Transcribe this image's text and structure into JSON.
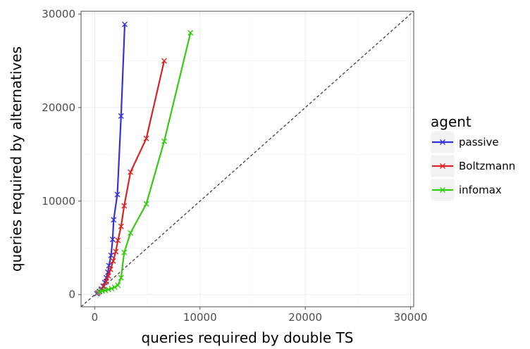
{
  "chart_data": {
    "type": "line",
    "xlabel": "queries required by double TS",
    "ylabel": "queries required by alternatives",
    "xlim": [
      -1300,
      30300
    ],
    "ylim": [
      -1300,
      30300
    ],
    "x_ticks": [
      0,
      10000,
      20000,
      30000
    ],
    "y_ticks": [
      0,
      10000,
      20000,
      30000
    ],
    "x_tick_labels": [
      "0",
      "10000",
      "20000",
      "30000"
    ],
    "y_tick_labels": [
      "0",
      "10000",
      "20000",
      "30000"
    ],
    "grid": true,
    "reference_line": "y = x (dashed)",
    "legend": {
      "title": "agent",
      "placement": "right"
    },
    "series": [
      {
        "name": "passive",
        "color": "#3333dd",
        "points": [
          [
            200,
            100
          ],
          [
            450,
            350
          ],
          [
            650,
            600
          ],
          [
            800,
            900
          ],
          [
            950,
            1300
          ],
          [
            1100,
            1800
          ],
          [
            1250,
            2400
          ],
          [
            1350,
            3100
          ],
          [
            1550,
            4200
          ],
          [
            1700,
            5900
          ],
          [
            1800,
            8000
          ],
          [
            2150,
            10700
          ],
          [
            2500,
            19100
          ],
          [
            2850,
            28900
          ]
        ]
      },
      {
        "name": "Boltzmann",
        "color": "#dd2222",
        "points": [
          [
            300,
            200
          ],
          [
            600,
            500
          ],
          [
            850,
            900
          ],
          [
            1100,
            1400
          ],
          [
            1300,
            2000
          ],
          [
            1500,
            2700
          ],
          [
            1750,
            3600
          ],
          [
            2000,
            4600
          ],
          [
            2200,
            5800
          ],
          [
            2500,
            7300
          ],
          [
            2800,
            9500
          ],
          [
            3400,
            13100
          ],
          [
            4900,
            16700
          ],
          [
            6600,
            25000
          ]
        ]
      },
      {
        "name": "infomax",
        "color": "#33cc11",
        "points": [
          [
            400,
            300
          ],
          [
            700,
            400
          ],
          [
            1000,
            450
          ],
          [
            1300,
            550
          ],
          [
            1600,
            650
          ],
          [
            1900,
            800
          ],
          [
            2200,
            1000
          ],
          [
            2500,
            1800
          ],
          [
            2800,
            4500
          ],
          [
            3400,
            6600
          ],
          [
            4900,
            9700
          ],
          [
            6600,
            16400
          ],
          [
            9100,
            28000
          ]
        ]
      }
    ]
  }
}
